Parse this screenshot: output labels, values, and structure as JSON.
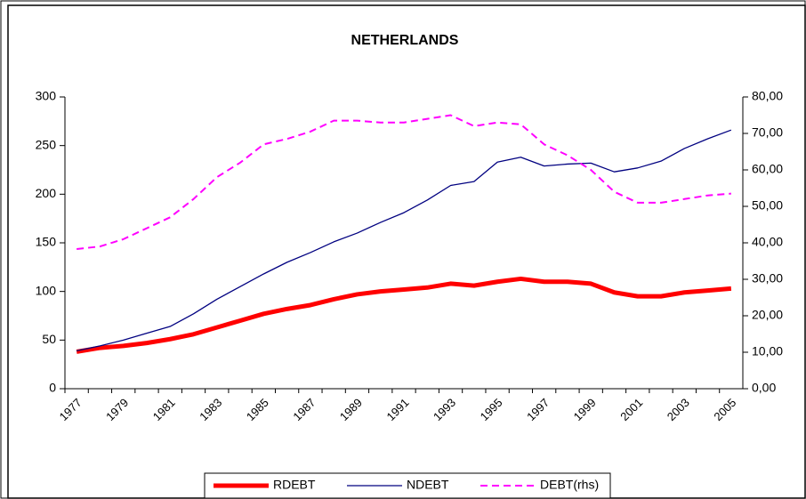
{
  "chart_data": {
    "type": "line",
    "title": "NETHERLANDS",
    "categories": [
      "1977",
      null,
      "1979",
      null,
      "1981",
      null,
      "1983",
      null,
      "1985",
      null,
      "1987",
      null,
      "1989",
      null,
      "1991",
      null,
      "1993",
      null,
      "1995",
      null,
      "1997",
      null,
      "1999",
      null,
      "2001",
      null,
      "2003",
      null,
      "2005"
    ],
    "series": [
      {
        "name": "RDEBT",
        "color": "#ff0000",
        "line_width": 5,
        "dashed": false,
        "values": [
          38,
          42,
          44,
          47,
          51,
          56,
          63,
          70,
          77,
          82,
          86,
          92,
          97,
          100,
          102,
          104,
          108,
          106,
          110,
          113,
          110,
          110,
          108,
          99,
          95,
          95,
          99,
          101,
          103
        ]
      },
      {
        "name": "NDEBT",
        "color": "#000080",
        "line_width": 1.3,
        "dashed": false,
        "values": [
          39,
          44,
          50,
          57,
          64,
          77,
          92,
          105,
          118,
          130,
          140,
          151,
          160,
          171,
          181,
          194,
          209,
          213,
          233,
          238,
          229,
          231,
          232,
          223,
          227,
          234,
          247,
          257,
          266
        ]
      },
      {
        "name": "DEBT(rhs)",
        "color": "#ff00ff",
        "line_width": 2,
        "dashed": true,
        "axis": "y2",
        "values": [
          38.3,
          39,
          41,
          44,
          47,
          52,
          58,
          62,
          67,
          68.5,
          70.5,
          73.5,
          73.5,
          73,
          73,
          74,
          75,
          72,
          73,
          72.5,
          67,
          64,
          60,
          54,
          51,
          51,
          52,
          53,
          53.5
        ]
      }
    ],
    "ylim": [
      0,
      300
    ],
    "yticks": [
      0,
      50,
      100,
      150,
      200,
      250,
      300
    ],
    "y2lim": [
      0,
      80
    ],
    "y2ticks": [
      {
        "value": 0,
        "label": "0,00"
      },
      {
        "value": 10,
        "label": "10,00"
      },
      {
        "value": 20,
        "label": "20,00"
      },
      {
        "value": 30,
        "label": "30,00"
      },
      {
        "value": 40,
        "label": "40,00"
      },
      {
        "value": 50,
        "label": "50,00"
      },
      {
        "value": 60,
        "label": "60,00"
      },
      {
        "value": 70,
        "label": "70,00"
      },
      {
        "value": 80,
        "label": "80,00"
      }
    ],
    "grid": false,
    "legend": "bottom"
  }
}
